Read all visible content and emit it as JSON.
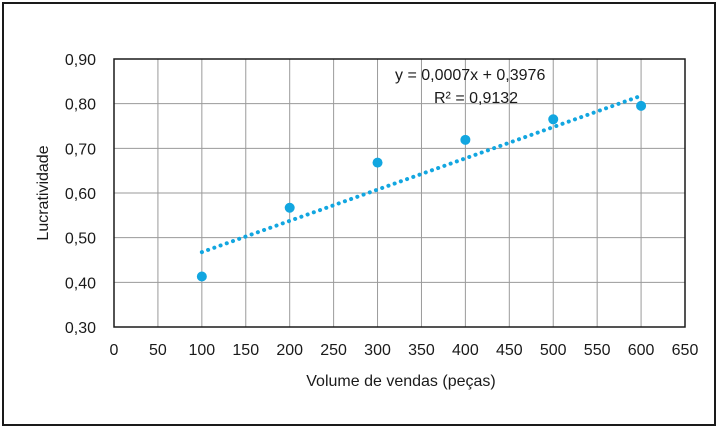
{
  "chart_data": {
    "type": "scatter",
    "xlabel": "Volume de vendas (peças)",
    "ylabel": "Lucratividade",
    "xlim": [
      0,
      650
    ],
    "ylim": [
      0.3,
      0.9
    ],
    "x_ticks": [
      "0",
      "50",
      "100",
      "150",
      "200",
      "250",
      "300",
      "350",
      "400",
      "450",
      "500",
      "550",
      "600",
      "650"
    ],
    "y_ticks": [
      "0,30",
      "0,40",
      "0,50",
      "0,60",
      "0,70",
      "0,80",
      "0,90"
    ],
    "grid": true,
    "series": [
      {
        "x": [
          100,
          200,
          300,
          400,
          500,
          600
        ],
        "y": [
          0.413,
          0.567,
          0.668,
          0.719,
          0.765,
          0.795
        ],
        "color": "#12a6e0"
      }
    ],
    "trendline": {
      "type": "linear",
      "slope": 0.0007,
      "intercept": 0.3976,
      "x_range": [
        100,
        600
      ],
      "style": "dotted",
      "color": "#12a6e0"
    },
    "annotations": {
      "equation": "y = 0,0007x + 0,3976",
      "r_squared": "R² = 0,9132"
    }
  }
}
